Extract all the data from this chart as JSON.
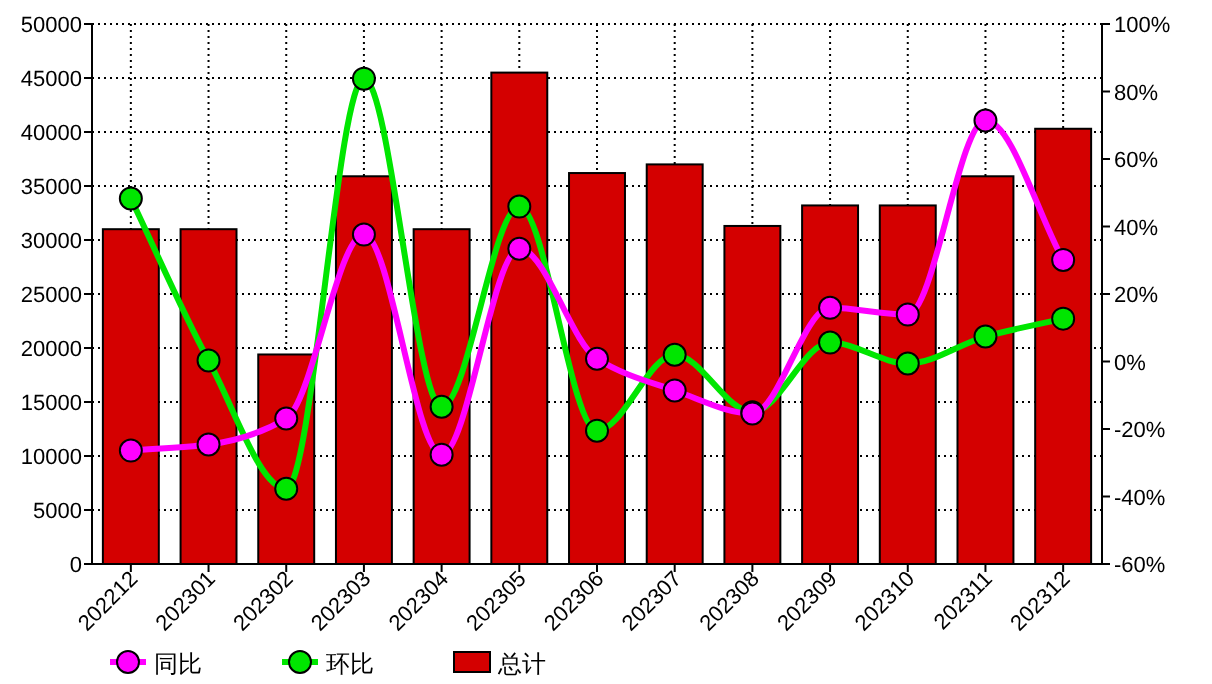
{
  "chart_data": {
    "type": "bar",
    "categories": [
      "202212",
      "202301",
      "202302",
      "202303",
      "202304",
      "202305",
      "202306",
      "202307",
      "202308",
      "202309",
      "202310",
      "202311",
      "202312"
    ],
    "series": [
      {
        "name": "同比",
        "type": "line",
        "axis": "y2",
        "color": "#ff00ff",
        "values": [
          -26.4,
          -24.6,
          -16.9,
          37.6,
          -27.6,
          33.4,
          0.8,
          -8.6,
          -15.4,
          15.9,
          13.9,
          71.4,
          30.1
        ]
      },
      {
        "name": "环比",
        "type": "line",
        "axis": "y2",
        "color": "#00e600",
        "values": [
          48.3,
          0.3,
          -37.7,
          83.8,
          -13.4,
          45.9,
          -20.5,
          2,
          -15,
          5.6,
          -0.6,
          7.4,
          12.7
        ]
      },
      {
        "name": "总计",
        "color": "#d40000",
        "values": [
          31000,
          31000,
          19400,
          35900,
          31000,
          45500,
          36200,
          37000,
          31300,
          33200,
          33200,
          35900,
          40300
        ]
      }
    ],
    "ylim": [
      0,
      50000
    ],
    "yticks": [
      0,
      5000,
      10000,
      15000,
      20000,
      25000,
      30000,
      35000,
      40000,
      45000,
      50000
    ],
    "y2lim": [
      -60,
      100
    ],
    "y2ticks": [
      {
        "value": -60,
        "label": "-60%"
      },
      {
        "value": -40,
        "label": "-40%"
      },
      {
        "value": -20,
        "label": "-20%"
      },
      {
        "value": 0,
        "label": "0%"
      },
      {
        "value": 20,
        "label": "20%"
      },
      {
        "value": 40,
        "label": "40%"
      },
      {
        "value": 60,
        "label": "60%"
      },
      {
        "value": 80,
        "label": "80%"
      },
      {
        "value": 100,
        "label": "100%"
      }
    ],
    "grid": true,
    "legend": "bottom",
    "marker": "circle"
  }
}
